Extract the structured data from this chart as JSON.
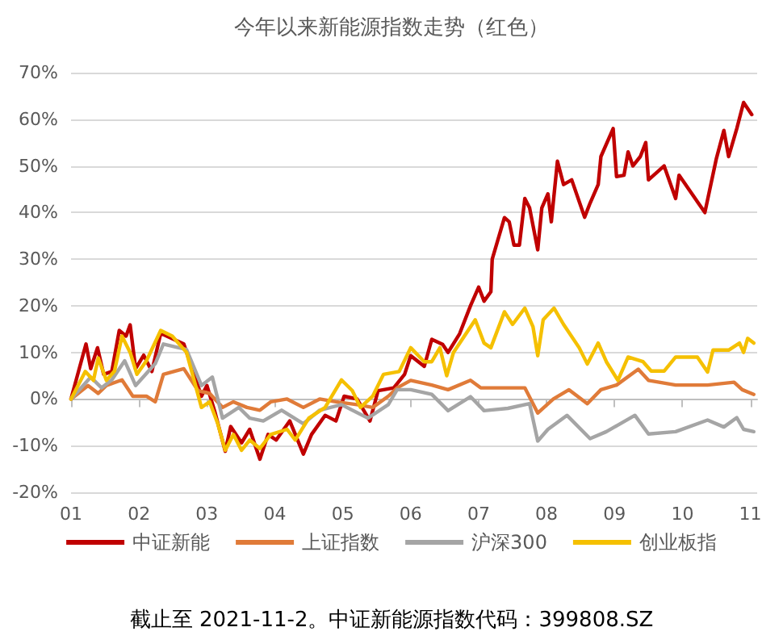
{
  "chart_data": {
    "type": "line",
    "title": "今年以来新能源指数走势（红色）",
    "annotations": [
      "截止至 2021-11-2。中证新能源指数代码：399808.SZ"
    ],
    "xlim": [
      1,
      11.1
    ],
    "xticks": [
      {
        "value": 1,
        "label": "01"
      },
      {
        "value": 2,
        "label": "02"
      },
      {
        "value": 3,
        "label": "03"
      },
      {
        "value": 4,
        "label": "04"
      },
      {
        "value": 5,
        "label": "05"
      },
      {
        "value": 6,
        "label": "06"
      },
      {
        "value": 7,
        "label": "07"
      },
      {
        "value": 8,
        "label": "08"
      },
      {
        "value": 9,
        "label": "09"
      },
      {
        "value": 10,
        "label": "10"
      },
      {
        "value": 11,
        "label": "11"
      }
    ],
    "ylim": [
      -20,
      70
    ],
    "yticks": [
      {
        "value": -20,
        "label": "-20%"
      },
      {
        "value": -10,
        "label": "-10%"
      },
      {
        "value": 0,
        "label": "0%"
      },
      {
        "value": 10,
        "label": "10%"
      },
      {
        "value": 20,
        "label": "20%"
      },
      {
        "value": 30,
        "label": "30%"
      },
      {
        "value": 40,
        "label": "40%"
      },
      {
        "value": 50,
        "label": "50%"
      },
      {
        "value": 60,
        "label": "60%"
      },
      {
        "value": 70,
        "label": "70%"
      }
    ],
    "grid": "y",
    "legend": "bottom",
    "marker": "none",
    "line_style": "solid",
    "series": [
      {
        "name": "中证新能",
        "color": "#c00000",
        "x": [
          1,
          1.13,
          1.22,
          1.29,
          1.39,
          1.48,
          1.6,
          1.71,
          1.81,
          1.87,
          1.95,
          2.07,
          2.19,
          2.32,
          2.66,
          2.92,
          3,
          3.12,
          3.27,
          3.35,
          3.51,
          3.63,
          3.78,
          3.9,
          4.02,
          4.22,
          4.42,
          4.54,
          4.74,
          4.9,
          5.02,
          5.21,
          5.4,
          5.52,
          5.75,
          5.91,
          6,
          6.2,
          6.31,
          6.47,
          6.55,
          6.72,
          6.88,
          7,
          7.08,
          7.18,
          7.2,
          7.38,
          7.45,
          7.52,
          7.6,
          7.68,
          7.75,
          7.87,
          7.93,
          8.02,
          8.07,
          8.16,
          8.25,
          8.37,
          8.56,
          8.64,
          8.76,
          8.8,
          8.98,
          9.03,
          9.14,
          9.2,
          9.27,
          9.38,
          9.46,
          9.5,
          9.73,
          9.9,
          9.95,
          10.33,
          10.5,
          10.61,
          10.68,
          10.8,
          10.9,
          11.02
        ],
        "values": [
          0,
          7,
          11.8,
          6.5,
          11,
          5.3,
          5.9,
          14.7,
          13.5,
          15.9,
          6.5,
          9.4,
          5.9,
          14.1,
          11.8,
          0.6,
          2.9,
          -2.9,
          -11.2,
          -5.9,
          -9.4,
          -6.5,
          -12.9,
          -7.6,
          -8.8,
          -4.7,
          -11.8,
          -7.6,
          -3.5,
          -4.7,
          0.6,
          0,
          -4.7,
          1.8,
          2.4,
          5.3,
          9.3,
          7,
          12.8,
          11.7,
          10,
          14,
          20,
          24,
          21,
          23,
          30,
          38.9,
          38,
          33,
          33,
          43,
          41,
          32,
          41,
          44,
          38,
          51,
          46,
          47,
          39,
          42,
          46,
          52,
          58,
          47.7,
          48,
          53,
          50,
          52,
          55,
          47,
          50,
          43,
          48,
          40,
          51.6,
          57.6,
          52,
          58,
          63.6,
          61
        ]
      },
      {
        "name": "上证指数",
        "color": "#e07b39",
        "x": [
          1,
          1.25,
          1.4,
          1.52,
          1.75,
          1.91,
          2.11,
          2.24,
          2.36,
          2.66,
          2.87,
          3.04,
          3.23,
          3.39,
          3.59,
          3.78,
          3.94,
          4.18,
          4.42,
          4.66,
          4.9,
          5.21,
          5.44,
          5.67,
          5.8,
          6,
          6.31,
          6.55,
          6.88,
          7.03,
          7.35,
          7.68,
          7.87,
          8.1,
          8.33,
          8.6,
          8.8,
          9.03,
          9.35,
          9.5,
          9.9,
          10.37,
          10.76,
          10.88,
          11.05
        ],
        "values": [
          0,
          2.9,
          1.2,
          2.9,
          4.1,
          0.6,
          0.6,
          -0.6,
          5.3,
          6.5,
          1.8,
          1.2,
          -1.8,
          -0.6,
          -1.8,
          -2.4,
          -0.6,
          0,
          -1.8,
          0,
          -0.6,
          -1.2,
          -1.8,
          0.6,
          2.4,
          4,
          3,
          2,
          4,
          2.4,
          2.4,
          2.4,
          -3,
          0,
          2,
          -1,
          2,
          3,
          6.4,
          4,
          3,
          3,
          3.6,
          2,
          1
        ]
      },
      {
        "name": "沪深300",
        "color": "#a5a5a5",
        "x": [
          1,
          1.29,
          1.45,
          1.6,
          1.79,
          1.95,
          2.24,
          2.36,
          2.7,
          2.92,
          3.08,
          3.23,
          3.47,
          3.63,
          3.83,
          4.1,
          4.42,
          4.66,
          4.98,
          5.37,
          5.67,
          5.8,
          6,
          6.31,
          6.55,
          6.88,
          7.08,
          7.43,
          7.75,
          7.87,
          8.02,
          8.3,
          8.64,
          8.88,
          9.3,
          9.5,
          9.9,
          10.37,
          10.61,
          10.8,
          10.9,
          11.05
        ],
        "values": [
          0,
          4.7,
          2.4,
          4.1,
          8.2,
          2.9,
          7.6,
          11.8,
          10.6,
          2.9,
          4.7,
          -4.1,
          -1.8,
          -4.1,
          -4.7,
          -2.4,
          -5.3,
          -2.4,
          -1.2,
          -4.1,
          -1.2,
          2,
          2,
          1,
          -2.5,
          0.5,
          -2.5,
          -2,
          -1,
          -9,
          -6.5,
          -3.5,
          -8.5,
          -7,
          -3.5,
          -7.5,
          -7,
          -4.5,
          -6,
          -4,
          -6.5,
          -7
        ]
      },
      {
        "name": "创业板指",
        "color": "#f5c000",
        "x": [
          1,
          1.21,
          1.33,
          1.4,
          1.52,
          1.64,
          1.75,
          1.87,
          1.97,
          2.11,
          2.32,
          2.49,
          2.7,
          2.92,
          3.04,
          3.16,
          3.27,
          3.39,
          3.51,
          3.63,
          3.78,
          3.94,
          4.18,
          4.3,
          4.5,
          4.74,
          4.98,
          5.14,
          5.26,
          5.44,
          5.6,
          5.83,
          6,
          6.2,
          6.31,
          6.43,
          6.53,
          6.63,
          6.95,
          7.08,
          7.18,
          7.38,
          7.5,
          7.68,
          7.8,
          7.87,
          7.95,
          8.11,
          8.25,
          8.48,
          8.6,
          8.76,
          8.88,
          9.05,
          9.2,
          9.42,
          9.54,
          9.73,
          9.9,
          10.22,
          10.37,
          10.45,
          10.68,
          10.84,
          10.9,
          10.96,
          11.05
        ],
        "values": [
          0,
          5.9,
          4,
          8.8,
          4,
          6,
          13.5,
          10,
          5.3,
          8.2,
          14.7,
          13.5,
          10,
          -1.8,
          -0.6,
          -5.3,
          -11,
          -7.6,
          -11,
          -8.8,
          -10.6,
          -7.6,
          -6.5,
          -8.8,
          -4.1,
          -1.8,
          4.1,
          1.8,
          -1.8,
          0.6,
          5.3,
          5.9,
          11,
          8,
          8,
          11,
          5,
          10,
          17,
          12,
          11,
          18.7,
          16,
          19.5,
          15.5,
          9.3,
          17,
          19.5,
          16,
          11,
          7.5,
          12,
          8,
          4,
          9,
          8,
          6,
          6,
          9,
          9,
          5.8,
          10.5,
          10.5,
          12,
          10,
          13,
          12
        ]
      }
    ]
  }
}
